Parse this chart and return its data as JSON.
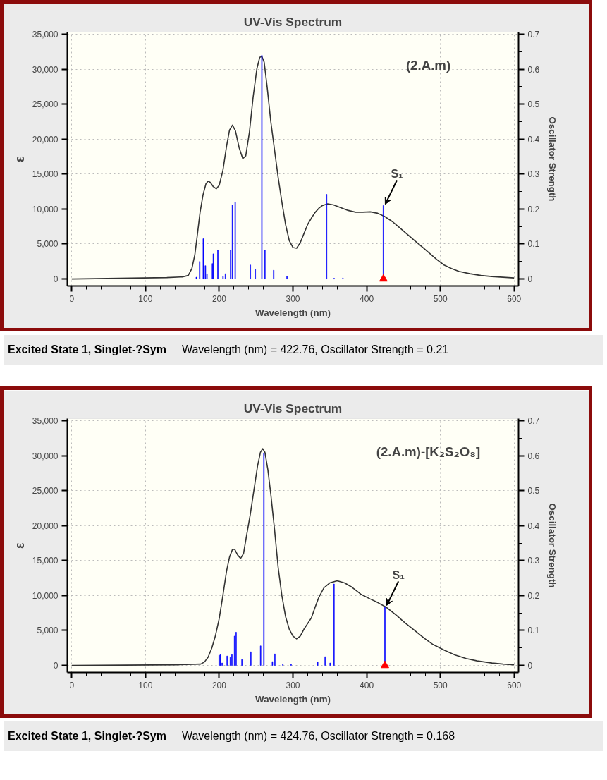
{
  "chart_data": [
    {
      "type": "line",
      "title": "UV-Vis Spectrum",
      "xlabel": "Wavelength (nm)",
      "ylabel": "ε",
      "y2label": "Oscillator Strength",
      "xlim": [
        -6,
        606
      ],
      "xticks": [
        0,
        100,
        200,
        300,
        400,
        500,
        600
      ],
      "ylim": [
        -1000,
        35300
      ],
      "yticks": [
        0,
        {
          "value": 5000,
          "label": "5,000"
        },
        {
          "value": 10000,
          "label": "10,000"
        },
        {
          "value": 15000,
          "label": "15,000"
        },
        {
          "value": 20000,
          "label": "20,000"
        },
        {
          "value": 25000,
          "label": "25,000"
        },
        {
          "value": 30000,
          "label": "30,000"
        },
        {
          "value": 35000,
          "label": "35,000"
        }
      ],
      "y2lim": [
        -0.02,
        0.706
      ],
      "y2ticks": [
        0,
        0.1,
        0.2,
        0.3,
        0.4,
        0.5,
        0.6,
        0.7
      ],
      "grid": true,
      "series": [
        {
          "color": "#333333",
          "marker": "none",
          "x": [
            0,
            129,
            150,
            158,
            163,
            167,
            170,
            174,
            178,
            182,
            185,
            188,
            192,
            196,
            200,
            205,
            210,
            214,
            218,
            222,
            227,
            232,
            236,
            241,
            246,
            251,
            255,
            258,
            261,
            265,
            270,
            275,
            280,
            285,
            290,
            295,
            300,
            305,
            310,
            315,
            320,
            325,
            330,
            335,
            340,
            347,
            355,
            365,
            375,
            385,
            395,
            405,
            415,
            425,
            435,
            445,
            455,
            465,
            475,
            485,
            495,
            505,
            515,
            525,
            540,
            555,
            570,
            585,
            600
          ],
          "values": [
            0,
            200,
            300,
            500,
            1500,
            3500,
            6000,
            9500,
            12000,
            13600,
            14000,
            13800,
            13200,
            12900,
            13400,
            15500,
            19000,
            21300,
            22000,
            21200,
            18800,
            17200,
            17600,
            21000,
            26000,
            30000,
            31700,
            31800,
            31000,
            27500,
            22500,
            18500,
            14500,
            11000,
            7800,
            5500,
            4500,
            4400,
            5200,
            6500,
            7800,
            8700,
            9500,
            10100,
            10500,
            10750,
            10600,
            10200,
            9800,
            9550,
            9550,
            9600,
            9400,
            8900,
            8200,
            7300,
            6400,
            5500,
            4600,
            3700,
            2800,
            2000,
            1500,
            1100,
            750,
            500,
            350,
            250,
            150
          ]
        },
        {
          "type": "bar",
          "color": "#0000ff",
          "axis": "y2",
          "x": [
            169.0,
            173.5,
            178.5,
            181.3,
            183.4,
            190.8,
            192.1,
            198.2,
            205.2,
            208.5,
            215.5,
            218.0,
            221.7,
            242.2,
            248.9,
            257.9,
            262.0,
            273.9,
            292.0,
            345.6,
            355.9,
            367.8,
            422.76
          ],
          "values": [
            0.005,
            0.05,
            0.115,
            0.038,
            0.015,
            0.044,
            0.072,
            0.082,
            0.007,
            0.015,
            0.082,
            0.211,
            0.22,
            0.04,
            0.028,
            0.64,
            0.082,
            0.025,
            0.008,
            0.242,
            0.002,
            0.003,
            0.21
          ]
        },
        {
          "type": "scatter",
          "color": "#ff0000",
          "marker": "triangle",
          "axis": "y2",
          "x": [
            422.76
          ],
          "values": [
            0
          ]
        }
      ],
      "annotations": [
        "(2.A.m)",
        {
          "text": "S₁",
          "x": 422.76,
          "y": 10500
        },
        "Excited State 1, Singlet-?Sym",
        "Wavelength (nm) = 422.76, Oscillator Strength = 0.21"
      ]
    },
    {
      "type": "line",
      "title": "UV-Vis Spectrum",
      "xlabel": "Wavelength (nm)",
      "ylabel": "ε",
      "y2label": "Oscillator Strength",
      "xlim": [
        -6,
        606
      ],
      "xticks": [
        0,
        100,
        200,
        300,
        400,
        500,
        600
      ],
      "ylim": [
        -1000,
        35300
      ],
      "yticks": [
        0,
        {
          "value": 5000,
          "label": "5,000"
        },
        {
          "value": 10000,
          "label": "10,000"
        },
        {
          "value": 15000,
          "label": "15,000"
        },
        {
          "value": 20000,
          "label": "20,000"
        },
        {
          "value": 25000,
          "label": "25,000"
        },
        {
          "value": 30000,
          "label": "30,000"
        },
        {
          "value": 35000,
          "label": "35,000"
        }
      ],
      "y2lim": [
        -0.02,
        0.706
      ],
      "y2ticks": [
        0,
        0.1,
        0.2,
        0.3,
        0.4,
        0.5,
        0.6,
        0.7
      ],
      "grid": true,
      "series": [
        {
          "color": "#333333",
          "marker": "none",
          "x": [
            0,
            143,
            175,
            180,
            185,
            190,
            195,
            200,
            205,
            210,
            214,
            218,
            221,
            225,
            229,
            233,
            237,
            242,
            247,
            252,
            256,
            259,
            262,
            266,
            270,
            275,
            280,
            285,
            290,
            295,
            300,
            305,
            310,
            315,
            320,
            325,
            330,
            335,
            342,
            350,
            360,
            370,
            380,
            392,
            405,
            415,
            427,
            440,
            452,
            465,
            478,
            490,
            505,
            520,
            535,
            550,
            570,
            585,
            600
          ],
          "values": [
            0,
            100,
            200,
            500,
            1200,
            2500,
            4300,
            6700,
            10000,
            13500,
            15500,
            16600,
            16600,
            15800,
            15300,
            16000,
            18500,
            21500,
            25000,
            28500,
            30500,
            31000,
            30500,
            28000,
            24500,
            19500,
            14000,
            10000,
            7000,
            5200,
            4200,
            3800,
            4200,
            5200,
            6000,
            6800,
            8300,
            9700,
            11100,
            11800,
            12100,
            11800,
            11200,
            10200,
            9500,
            9000,
            8300,
            7200,
            6100,
            5000,
            3900,
            3000,
            2200,
            1500,
            1000,
            650,
            350,
            200,
            100
          ]
        },
        {
          "type": "bar",
          "color": "#0000ff",
          "axis": "y2",
          "x": [
            200.0,
            201.6,
            204.0,
            210.8,
            215.2,
            217.2,
            220.9,
            222.9,
            230.9,
            242.9,
            256.2,
            260.6,
            272.2,
            275.5,
            286.3,
            297.5,
            333.6,
            343.7,
            350.5,
            355.7,
            424.76
          ],
          "values": [
            0.029,
            0.031,
            0.007,
            0.027,
            0.023,
            0.031,
            0.084,
            0.095,
            0.017,
            0.039,
            0.056,
            0.607,
            0.011,
            0.033,
            0.003,
            0.004,
            0.009,
            0.025,
            0.007,
            0.233,
            0.168
          ]
        },
        {
          "type": "scatter",
          "color": "#ff0000",
          "marker": "triangle",
          "axis": "y2",
          "x": [
            424.76
          ],
          "values": [
            0
          ]
        }
      ],
      "annotations": [
        "(2.A.m)-[K₂S₂O₈]",
        {
          "text": "S₁",
          "x": 424.76,
          "y": 8400
        },
        "Excited State 1, Singlet-?Sym",
        "Wavelength (nm) = 424.76, Oscillator Strength = 0.168"
      ]
    }
  ]
}
